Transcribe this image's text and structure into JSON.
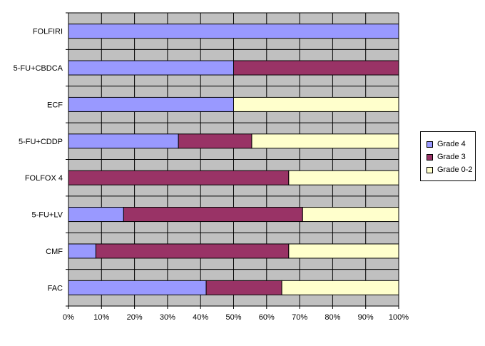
{
  "chart_data": {
    "type": "bar",
    "orientation": "horizontal",
    "stacked": "percent",
    "categories": [
      "FOLFIRI",
      "5-FU+CBDCA",
      "ECF",
      "5-FU+CDDP",
      "FOLFOX 4",
      "5-FU+LV",
      "CMF",
      "FAC"
    ],
    "series": [
      {
        "name": "Grade 4",
        "color": "#9999ff",
        "values": [
          100,
          50,
          50,
          33.3,
          0,
          16.7,
          8.3,
          41.7
        ]
      },
      {
        "name": "Grade 3",
        "color": "#993366",
        "values": [
          0,
          50,
          0,
          22.2,
          66.7,
          54.2,
          58.4,
          22.9
        ]
      },
      {
        "name": "Grade 0-2",
        "color": "#ffffcc",
        "values": [
          0,
          0,
          50,
          44.5,
          33.3,
          29.1,
          33.3,
          35.4
        ]
      }
    ],
    "xticks": [
      "0%",
      "10%",
      "20%",
      "30%",
      "40%",
      "50%",
      "60%",
      "70%",
      "80%",
      "90%",
      "100%"
    ],
    "xlim": [
      0,
      100
    ],
    "plot_background": "#c0c0c0",
    "grid": true,
    "legend_position": "right"
  }
}
